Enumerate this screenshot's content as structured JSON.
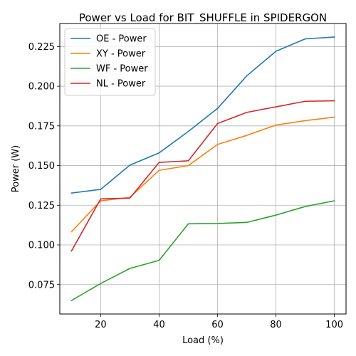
{
  "chart_data": {
    "type": "line",
    "title": "Power vs Load for BIT_SHUFFLE in SPIDERGON",
    "xlabel": "Load (%)",
    "ylabel": "Power (W)",
    "x": [
      10,
      20,
      30,
      40,
      50,
      60,
      70,
      80,
      90,
      100
    ],
    "xlim": [
      6,
      104
    ],
    "ylim": [
      0.0565,
      0.2395
    ],
    "xticks": [
      "20",
      "40",
      "60",
      "80",
      "100"
    ],
    "yticks": [
      "0.075",
      "0.100",
      "0.125",
      "0.150",
      "0.175",
      "0.200",
      "0.225"
    ],
    "grid": true,
    "legend_position": "top-left",
    "series": [
      {
        "name": "OE - Power",
        "color": "#1f77b4",
        "values": [
          0.1327,
          0.135,
          0.1503,
          0.158,
          0.1715,
          0.186,
          0.2065,
          0.222,
          0.2298,
          0.231
        ]
      },
      {
        "name": "XY - Power",
        "color": "#ff7f0e",
        "values": [
          0.1083,
          0.1278,
          0.13,
          0.147,
          0.15,
          0.1633,
          0.169,
          0.1755,
          0.1783,
          0.1805
        ]
      },
      {
        "name": "WF - Power",
        "color": "#2ca02c",
        "values": [
          0.065,
          0.0757,
          0.0852,
          0.0903,
          0.1133,
          0.1135,
          0.1142,
          0.1188,
          0.1242,
          0.1278
        ]
      },
      {
        "name": "NL - Power",
        "color": "#d62728",
        "values": [
          0.0962,
          0.129,
          0.1295,
          0.152,
          0.153,
          0.1765,
          0.1835,
          0.187,
          0.1905,
          0.1908
        ]
      }
    ]
  }
}
